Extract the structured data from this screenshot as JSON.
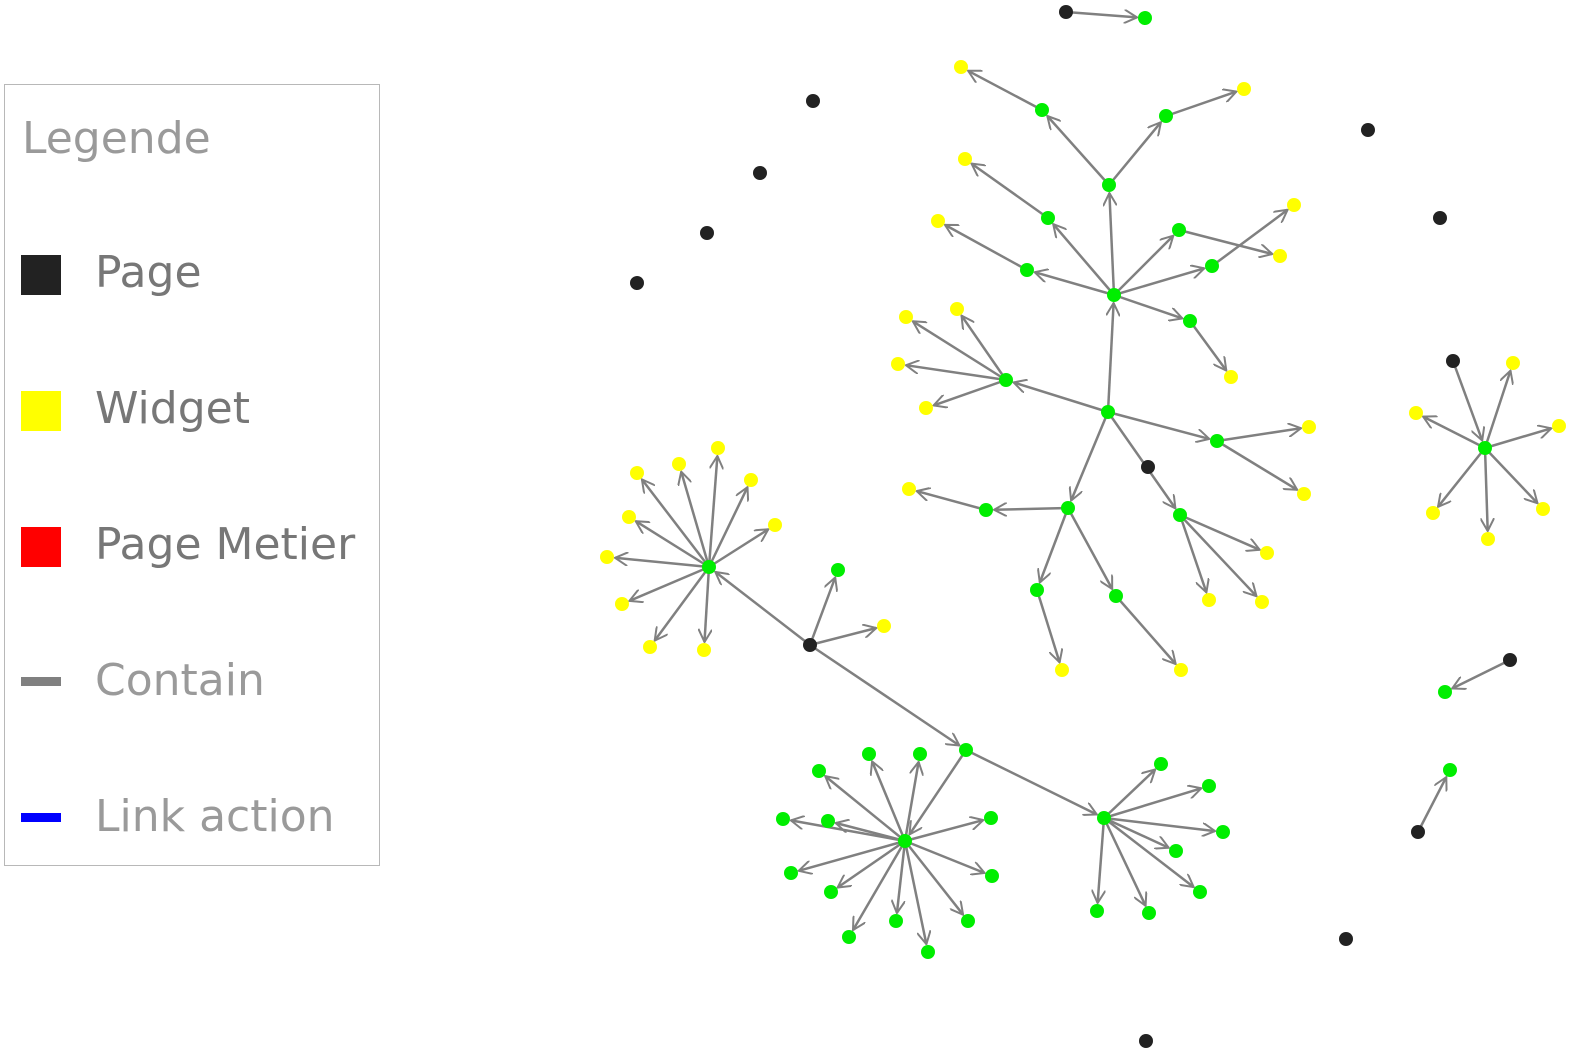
{
  "legend": {
    "title": "Legende",
    "items": [
      {
        "label": "Page",
        "kind": "box",
        "color": "#222222"
      },
      {
        "label": "Widget",
        "kind": "box",
        "color": "#ffff00"
      },
      {
        "label": "Page Metier",
        "kind": "box",
        "color": "#ff0000"
      },
      {
        "label": "Contain",
        "kind": "line",
        "color": "#808080"
      },
      {
        "label": "Link action",
        "kind": "line",
        "color": "#0000ff"
      }
    ]
  },
  "colors": {
    "page": "#222222",
    "widget": "#ffff00",
    "component": "#00ee00",
    "contain_edge": "#808080"
  }
}
